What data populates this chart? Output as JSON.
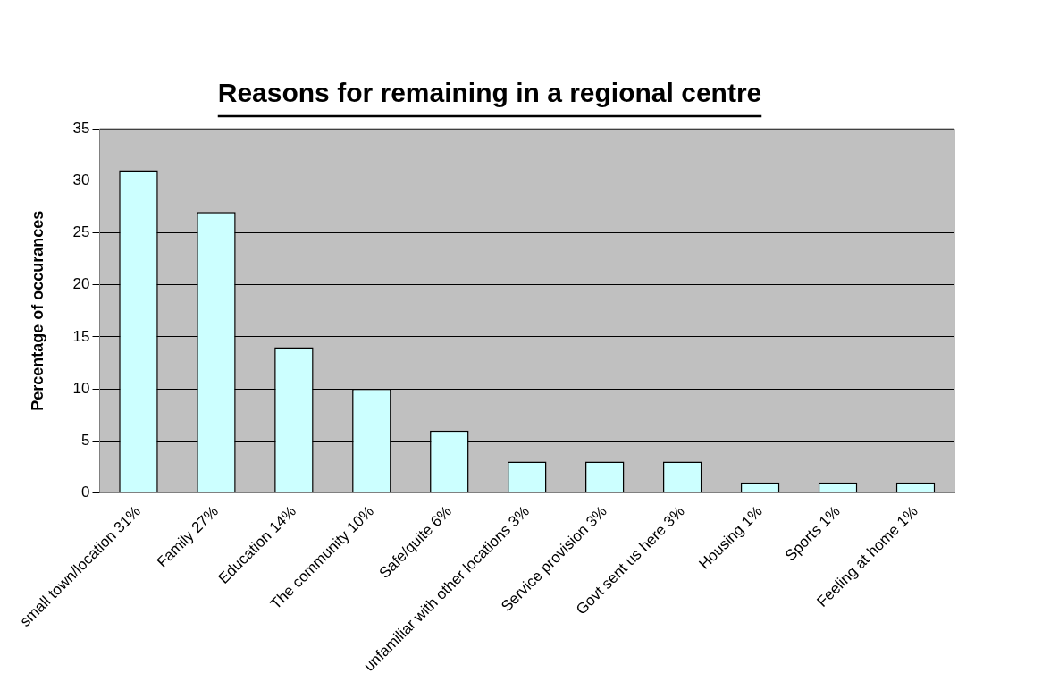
{
  "chart_data": {
    "type": "bar",
    "title": "Reasons for remaining in a regional centre",
    "ylabel": "Percentage of occurances",
    "categories": [
      "small town/location 31%",
      "Family 27%",
      "Education 14%",
      "The community 10%",
      "Safe/quite 6%",
      "unfamiliar with other locations 3%",
      "Service provision 3%",
      "Govt sent us here 3%",
      "Housing 1%",
      "Sports 1%",
      "Feeling at home 1%"
    ],
    "values": [
      31,
      27,
      14,
      10,
      6,
      3,
      3,
      3,
      1,
      1,
      1
    ],
    "color": "#ccffff",
    "ylim": [
      0,
      35
    ],
    "yticks": [
      0,
      5,
      10,
      15,
      20,
      25,
      30,
      35
    ],
    "grid": "y",
    "legend": false
  }
}
